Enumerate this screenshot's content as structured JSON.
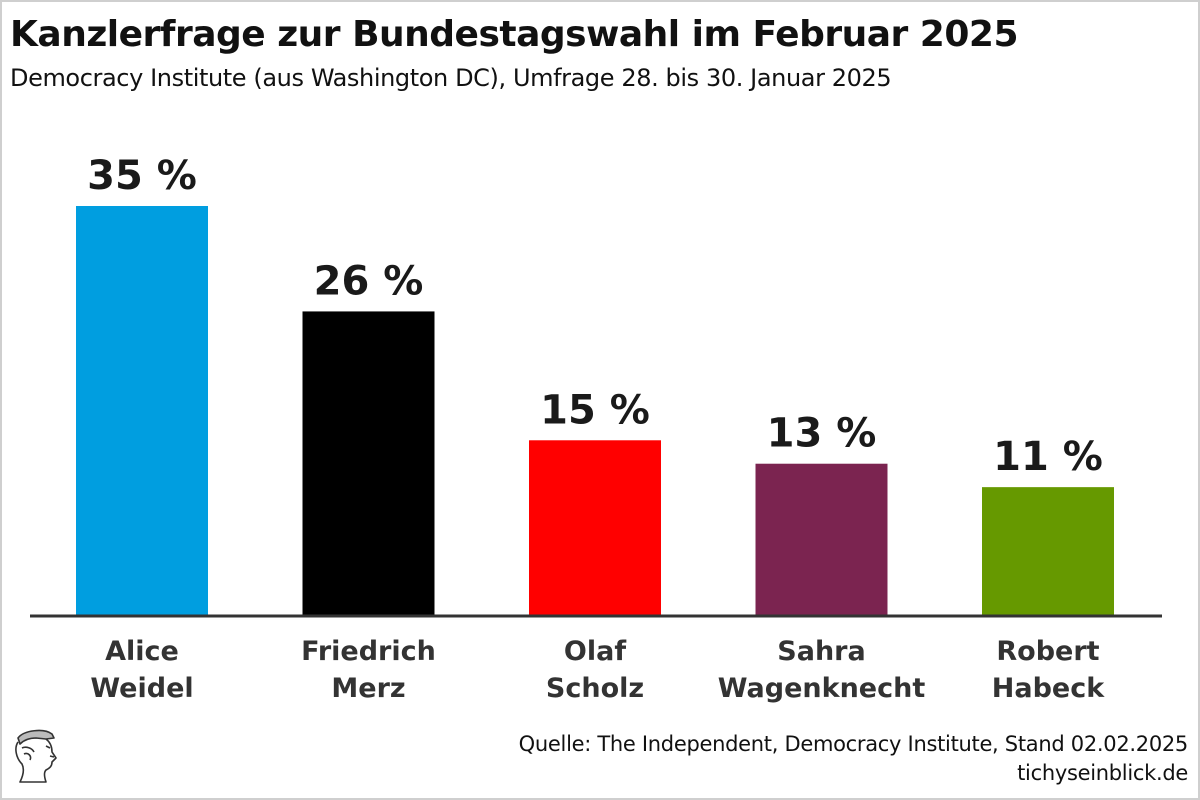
{
  "header": {
    "title": "Kanzlerfrage zur Bundestagswahl im Februar 2025",
    "subtitle": "Democracy Institute (aus Washington DC), Umfrage 28. bis 30. Januar 2025"
  },
  "chart_data": {
    "type": "bar",
    "title": "Kanzlerfrage zur Bundestagswahl im Februar 2025",
    "subtitle": "Democracy Institute (aus Washington DC), Umfrage 28. bis 30. Januar 2025",
    "xlabel": "",
    "ylabel": "",
    "ylim": [
      0,
      35
    ],
    "grid": false,
    "legend": "none",
    "categories": [
      [
        "Alice",
        "Weidel"
      ],
      [
        "Friedrich",
        "Merz"
      ],
      [
        "Olaf",
        "Scholz"
      ],
      [
        "Sahra",
        "Wagenknecht"
      ],
      [
        "Robert",
        "Habeck"
      ]
    ],
    "values": [
      35,
      26,
      15,
      13,
      11
    ],
    "value_labels": [
      "35 %",
      "26 %",
      "15 %",
      "13 %",
      "11 %"
    ],
    "colors": [
      "#009ee0",
      "#000000",
      "#ff0000",
      "#7b2450",
      "#669900"
    ],
    "unit": "%"
  },
  "footer": {
    "source": "Quelle: The Independent, Democracy Institute, Stand 02.02.2025",
    "site": "tichyseinblick.de",
    "logo_icon": "hermes-head-icon"
  }
}
